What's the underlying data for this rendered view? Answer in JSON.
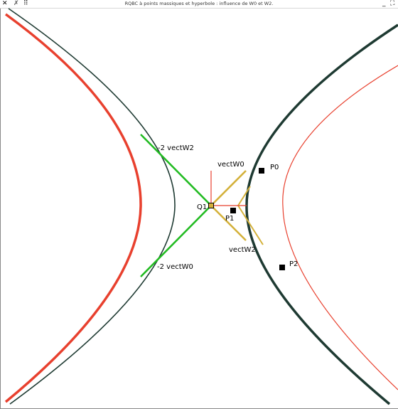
{
  "window": {
    "title": "RQBC à points massiques et hyperbole : influence de W0 et W2.",
    "close_glyph": "✕",
    "tool_glyph": "✗",
    "menu_glyph": "⠿",
    "minimize_glyph": "_",
    "maximize_glyph": "⛶"
  },
  "labels": {
    "q1": "Q1",
    "p0": "P0",
    "p1": "P1",
    "p2": "P2",
    "vect_w0": "vectW0",
    "vect_w2": "vectW2",
    "neg2_vect_w2": "-2 vectW2",
    "neg2_vect_w0": "-2 vectW0"
  },
  "colors": {
    "background": "#ffffff",
    "dark_curve": "#1e3a32",
    "red_curve": "#e8402e",
    "green": "#22bb22",
    "yellow": "#d4b13a",
    "red_line": "#e8402e",
    "point": "#000000"
  }
}
